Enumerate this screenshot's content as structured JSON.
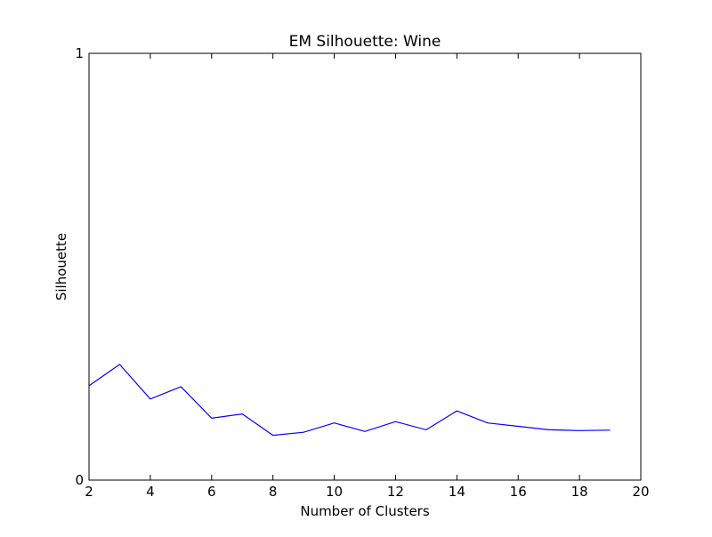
{
  "chart_data": {
    "type": "line",
    "title": "EM Silhouette: Wine",
    "xlabel": "Number of Clusters",
    "ylabel": "Silhouette",
    "xlim": [
      2,
      20
    ],
    "ylim": [
      0,
      1
    ],
    "xticks": [
      "2",
      "4",
      "6",
      "8",
      "10",
      "12",
      "14",
      "16",
      "18",
      "20"
    ],
    "xtick_values": [
      2,
      4,
      6,
      8,
      10,
      12,
      14,
      16,
      18,
      20
    ],
    "yticks": [
      "0",
      "1"
    ],
    "ytick_values": [
      0,
      1
    ],
    "grid": false,
    "series": [
      {
        "color": "#0000ff",
        "x": [
          2,
          3,
          4,
          5,
          6,
          7,
          8,
          9,
          10,
          11,
          12,
          13,
          14,
          15,
          16,
          17,
          18,
          19
        ],
        "y": [
          0.221,
          0.271,
          0.19,
          0.219,
          0.145,
          0.155,
          0.105,
          0.112,
          0.134,
          0.114,
          0.137,
          0.118,
          0.162,
          0.134,
          0.126,
          0.118,
          0.116,
          0.117
        ]
      }
    ]
  }
}
